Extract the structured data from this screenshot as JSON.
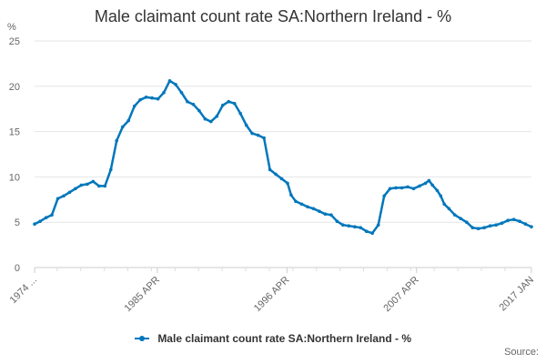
{
  "chart_data": {
    "type": "line",
    "title": "Male claimant count rate SA:Northern Ireland - %",
    "ylabel": "%",
    "xlabel": "",
    "ylim": [
      0,
      25
    ],
    "yticks": [
      0,
      5,
      10,
      15,
      20,
      25
    ],
    "xlim": [
      1974.83,
      2017.0
    ],
    "xticks": [
      {
        "value": 1974.83,
        "label": "1974 ..."
      },
      {
        "value": 1985.25,
        "label": "1985 APR"
      },
      {
        "value": 1996.25,
        "label": "1996 APR"
      },
      {
        "value": 2007.25,
        "label": "2007 APR"
      },
      {
        "value": 2017.0,
        "label": "2017 JAN"
      }
    ],
    "grid": true,
    "legend_position": "bottom",
    "color": "#0077bb",
    "series": [
      {
        "name": "Male claimant count rate SA:Northern Ireland - %",
        "x": [
          1974.83,
          1975.3,
          1975.8,
          1976.3,
          1976.8,
          1977.3,
          1977.8,
          1978.3,
          1978.8,
          1979.3,
          1979.8,
          1980.3,
          1980.8,
          1981.3,
          1981.8,
          1982.3,
          1982.8,
          1983.3,
          1983.8,
          1984.3,
          1984.8,
          1985.3,
          1985.8,
          1986.3,
          1986.8,
          1987.3,
          1987.8,
          1988.3,
          1988.8,
          1989.3,
          1989.8,
          1990.3,
          1990.8,
          1991.3,
          1991.8,
          1992.3,
          1992.8,
          1993.3,
          1993.8,
          1994.3,
          1994.8,
          1995.3,
          1995.8,
          1996.3,
          1996.6,
          1997.0,
          1997.5,
          1998.0,
          1998.5,
          1999.0,
          1999.5,
          2000.0,
          2000.5,
          2001.0,
          2001.5,
          2002.0,
          2002.5,
          2003.0,
          2003.5,
          2004.0,
          2004.5,
          2005.0,
          2005.5,
          2006.0,
          2006.5,
          2007.0,
          2007.5,
          2008.0,
          2008.3,
          2008.6,
          2009.0,
          2009.3,
          2009.6,
          2010.0,
          2010.5,
          2011.0,
          2011.5,
          2012.0,
          2012.5,
          2013.0,
          2013.5,
          2014.0,
          2014.5,
          2015.0,
          2015.5,
          2016.0,
          2016.5,
          2017.0
        ],
        "values": [
          4.8,
          5.1,
          5.5,
          5.8,
          7.6,
          7.9,
          8.3,
          8.7,
          9.1,
          9.2,
          9.5,
          9.0,
          9.0,
          10.8,
          14.0,
          15.5,
          16.2,
          17.8,
          18.5,
          18.8,
          18.7,
          18.6,
          19.3,
          20.6,
          20.2,
          19.3,
          18.3,
          18.0,
          17.3,
          16.4,
          16.1,
          16.7,
          17.9,
          18.3,
          18.1,
          17.0,
          15.7,
          14.8,
          14.6,
          14.3,
          10.8,
          10.3,
          9.8,
          9.3,
          8.0,
          7.3,
          7.0,
          6.7,
          6.5,
          6.2,
          5.9,
          5.8,
          5.1,
          4.7,
          4.6,
          4.5,
          4.4,
          4.0,
          3.8,
          4.7,
          7.9,
          8.7,
          8.8,
          8.8,
          8.9,
          8.7,
          9.0,
          9.3,
          9.6,
          9.1,
          8.5,
          7.9,
          7.0,
          6.5,
          5.8,
          5.4,
          5.0,
          4.4,
          4.3,
          4.4,
          4.6,
          4.7,
          4.9,
          5.2,
          5.3,
          5.1,
          4.8,
          4.5
        ]
      }
    ]
  },
  "source_label": "Source:"
}
